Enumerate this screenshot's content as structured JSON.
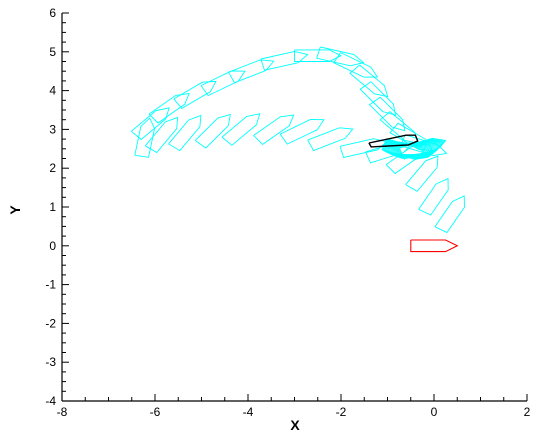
{
  "chart_data": {
    "type": "scatter",
    "title": "",
    "xlabel": "X",
    "ylabel": "Y",
    "xlim": [
      -8,
      2
    ],
    "ylim": [
      -4,
      6
    ],
    "x_ticks": [
      -8,
      -6,
      -4,
      -2,
      0,
      2
    ],
    "y_ticks": [
      -4,
      -3,
      -2,
      -1,
      0,
      1,
      2,
      3,
      4,
      5,
      6
    ],
    "grid": false,
    "legend": "none",
    "colors": {
      "path": "#00ffff",
      "start": "#ff0000",
      "highlight": "#000000",
      "axes": "#000000"
    },
    "start_shape": {
      "name": "start-shape",
      "points": [
        [
          -0.5,
          0.15
        ],
        [
          0.25,
          0.15
        ],
        [
          0.5,
          0.0
        ],
        [
          0.25,
          -0.15
        ],
        [
          -0.5,
          -0.15
        ],
        [
          -0.5,
          0.15
        ]
      ]
    },
    "highlight_shape": {
      "name": "highlight-shape",
      "points": [
        [
          -1.4,
          2.65
        ],
        [
          -0.6,
          2.85
        ],
        [
          -0.4,
          2.85
        ],
        [
          -0.35,
          2.7
        ],
        [
          -0.55,
          2.6
        ],
        [
          -1.35,
          2.55
        ],
        [
          -1.4,
          2.65
        ]
      ]
    },
    "trajectory_center": [
      [
        0.4,
        0.85
      ],
      [
        0.05,
        1.3
      ],
      [
        -0.2,
        1.9
      ],
      [
        -0.55,
        2.3
      ],
      [
        -0.95,
        2.45
      ],
      [
        -1.5,
        2.55
      ],
      [
        -2.2,
        2.8
      ],
      [
        -2.8,
        3.0
      ],
      [
        -3.4,
        3.05
      ],
      [
        -4.1,
        3.05
      ],
      [
        -4.7,
        3.0
      ],
      [
        -5.3,
        2.95
      ],
      [
        -5.8,
        2.9
      ],
      [
        -6.2,
        2.8
      ],
      [
        -6.05,
        3.2
      ],
      [
        -5.65,
        3.6
      ],
      [
        -5.1,
        3.95
      ],
      [
        -4.5,
        4.25
      ],
      [
        -3.9,
        4.55
      ],
      [
        -3.2,
        4.8
      ],
      [
        -2.5,
        4.9
      ],
      [
        -2.0,
        4.85
      ],
      [
        -1.65,
        4.6
      ],
      [
        -1.35,
        4.2
      ],
      [
        -1.15,
        3.75
      ],
      [
        -0.95,
        3.35
      ],
      [
        -0.7,
        3.0
      ],
      [
        -0.45,
        2.75
      ],
      [
        -0.2,
        2.55
      ]
    ],
    "trajectory_heading_deg": [
      60,
      60,
      55,
      40,
      20,
      15,
      25,
      30,
      40,
      45,
      50,
      55,
      55,
      80,
      45,
      40,
      35,
      30,
      25,
      15,
      0,
      -15,
      -30,
      -45,
      -50,
      -50,
      -45,
      -35,
      -20
    ],
    "dense_heading_start_deg": -20,
    "dense_heading_end_deg": 20,
    "dense_count": 20,
    "dense_center": [
      -0.6,
      2.45
    ]
  }
}
